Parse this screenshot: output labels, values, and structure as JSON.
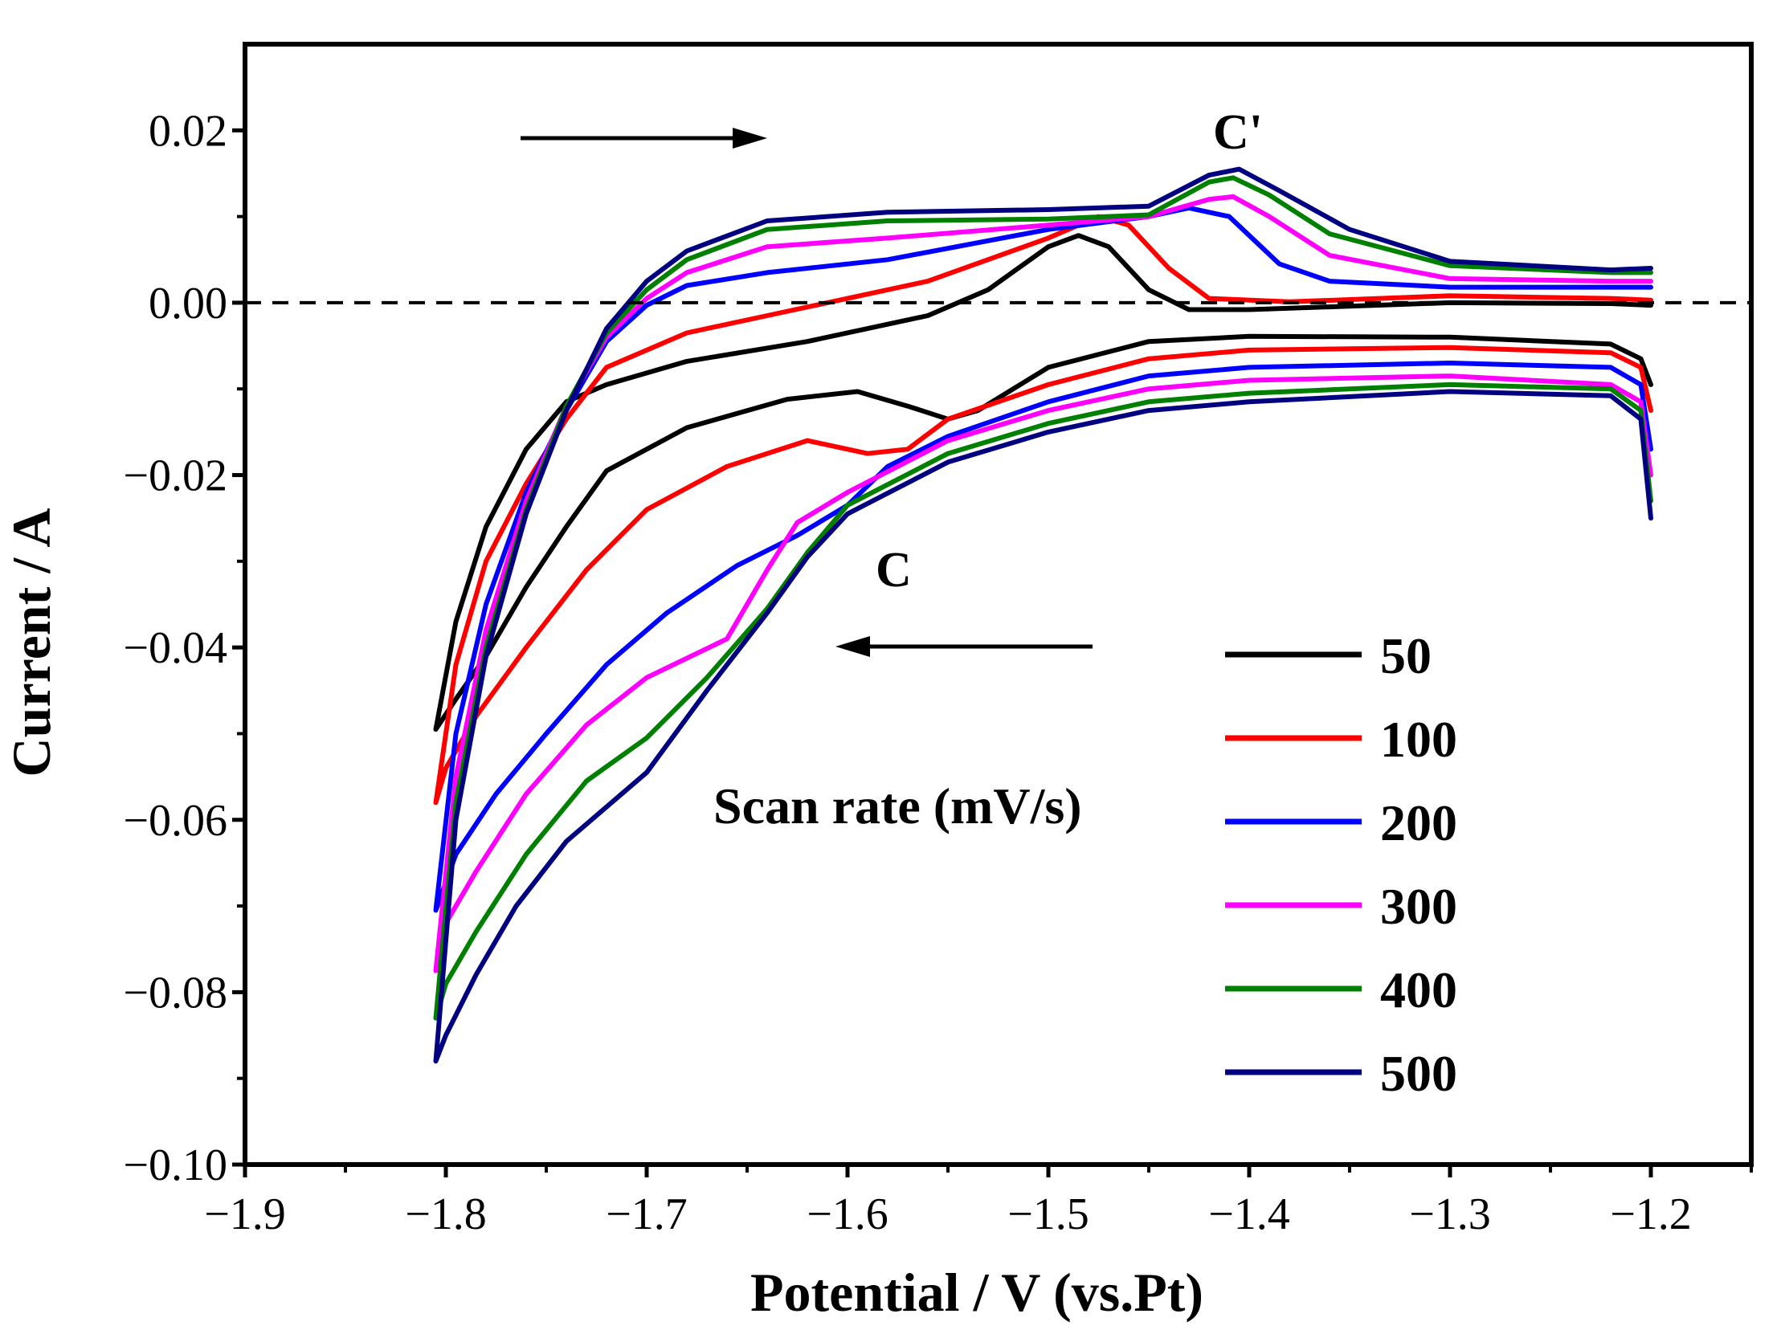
{
  "chart_data": {
    "type": "line",
    "title": "",
    "xlabel": "Potential / V (vs.Pt)",
    "ylabel": "Current / A",
    "xlim": [
      -1.9,
      -1.15
    ],
    "ylim": [
      -0.1,
      0.03
    ],
    "x_ticks": [
      -1.9,
      -1.8,
      -1.7,
      -1.6,
      -1.5,
      -1.4,
      -1.3,
      -1.2
    ],
    "x_tick_labels": [
      "−1.9",
      "−1.8",
      "−1.7",
      "−1.6",
      "−1.5",
      "−1.4",
      "−1.3",
      "−1.2"
    ],
    "y_ticks": [
      0.02,
      0.0,
      -0.02,
      -0.04,
      -0.06,
      -0.08,
      -0.1
    ],
    "y_tick_labels": [
      "0.02",
      "0.00",
      "−0.02",
      "−0.04",
      "−0.06",
      "−0.08",
      "−0.10"
    ],
    "zero_line": 0.0,
    "legend_title": "Scan rate (mV/s)",
    "annotations": {
      "peak_anodic": "C'",
      "peak_cathodic": "C"
    },
    "series": [
      {
        "name": "50",
        "color": "#000000",
        "cathodic": [
          [
            -1.2,
            -0.0095
          ],
          [
            -1.205,
            -0.0065
          ],
          [
            -1.22,
            -0.0048
          ],
          [
            -1.3,
            -0.004
          ],
          [
            -1.4,
            -0.0039
          ],
          [
            -1.45,
            -0.0045
          ],
          [
            -1.5,
            -0.0075
          ],
          [
            -1.535,
            -0.0125
          ],
          [
            -1.55,
            -0.0135
          ],
          [
            -1.57,
            -0.012
          ],
          [
            -1.595,
            -0.0103
          ],
          [
            -1.63,
            -0.0112
          ],
          [
            -1.68,
            -0.0145
          ],
          [
            -1.72,
            -0.0195
          ],
          [
            -1.74,
            -0.026
          ],
          [
            -1.76,
            -0.033
          ],
          [
            -1.78,
            -0.041
          ],
          [
            -1.795,
            -0.046
          ],
          [
            -1.805,
            -0.0495
          ]
        ],
        "anodic": [
          [
            -1.805,
            -0.0495
          ],
          [
            -1.795,
            -0.037
          ],
          [
            -1.78,
            -0.026
          ],
          [
            -1.76,
            -0.017
          ],
          [
            -1.74,
            -0.0115
          ],
          [
            -1.72,
            -0.0095
          ],
          [
            -1.68,
            -0.0068
          ],
          [
            -1.62,
            -0.0045
          ],
          [
            -1.56,
            -0.0015
          ],
          [
            -1.53,
            0.0015
          ],
          [
            -1.5,
            0.0065
          ],
          [
            -1.485,
            0.0078
          ],
          [
            -1.47,
            0.0065
          ],
          [
            -1.45,
            0.0015
          ],
          [
            -1.43,
            -0.0008
          ],
          [
            -1.4,
            -0.0008
          ],
          [
            -1.3,
            0.0
          ],
          [
            -1.22,
            -0.0001
          ],
          [
            -1.2,
            -0.0003
          ]
        ]
      },
      {
        "name": "100",
        "color": "#ff0000",
        "cathodic": [
          [
            -1.2,
            -0.0125
          ],
          [
            -1.205,
            -0.0075
          ],
          [
            -1.22,
            -0.0058
          ],
          [
            -1.3,
            -0.0052
          ],
          [
            -1.4,
            -0.0055
          ],
          [
            -1.45,
            -0.0065
          ],
          [
            -1.5,
            -0.0095
          ],
          [
            -1.55,
            -0.0135
          ],
          [
            -1.57,
            -0.017
          ],
          [
            -1.59,
            -0.0175
          ],
          [
            -1.62,
            -0.016
          ],
          [
            -1.66,
            -0.019
          ],
          [
            -1.7,
            -0.024
          ],
          [
            -1.73,
            -0.031
          ],
          [
            -1.76,
            -0.04
          ],
          [
            -1.785,
            -0.048
          ],
          [
            -1.8,
            -0.054
          ],
          [
            -1.805,
            -0.058
          ]
        ],
        "anodic": [
          [
            -1.805,
            -0.058
          ],
          [
            -1.795,
            -0.042
          ],
          [
            -1.78,
            -0.03
          ],
          [
            -1.76,
            -0.021
          ],
          [
            -1.74,
            -0.0135
          ],
          [
            -1.72,
            -0.0075
          ],
          [
            -1.68,
            -0.0035
          ],
          [
            -1.64,
            -0.0015
          ],
          [
            -1.6,
            0.0005
          ],
          [
            -1.56,
            0.0025
          ],
          [
            -1.5,
            0.0075
          ],
          [
            -1.475,
            0.01
          ],
          [
            -1.46,
            0.009
          ],
          [
            -1.44,
            0.004
          ],
          [
            -1.42,
            0.0005
          ],
          [
            -1.38,
            0.0001
          ],
          [
            -1.3,
            0.0008
          ],
          [
            -1.22,
            0.0005
          ],
          [
            -1.2,
            0.0003
          ]
        ]
      },
      {
        "name": "200",
        "color": "#0000ff",
        "cathodic": [
          [
            -1.2,
            -0.017
          ],
          [
            -1.205,
            -0.0095
          ],
          [
            -1.22,
            -0.0075
          ],
          [
            -1.3,
            -0.007
          ],
          [
            -1.4,
            -0.0075
          ],
          [
            -1.45,
            -0.0085
          ],
          [
            -1.5,
            -0.0115
          ],
          [
            -1.55,
            -0.0155
          ],
          [
            -1.58,
            -0.019
          ],
          [
            -1.6,
            -0.0235
          ],
          [
            -1.625,
            -0.027
          ],
          [
            -1.655,
            -0.0305
          ],
          [
            -1.69,
            -0.036
          ],
          [
            -1.72,
            -0.042
          ],
          [
            -1.75,
            -0.05
          ],
          [
            -1.775,
            -0.057
          ],
          [
            -1.795,
            -0.064
          ],
          [
            -1.805,
            -0.0705
          ]
        ],
        "anodic": [
          [
            -1.805,
            -0.0705
          ],
          [
            -1.795,
            -0.05
          ],
          [
            -1.78,
            -0.035
          ],
          [
            -1.76,
            -0.022
          ],
          [
            -1.74,
            -0.0125
          ],
          [
            -1.72,
            -0.0045
          ],
          [
            -1.7,
            -0.0003
          ],
          [
            -1.68,
            0.002
          ],
          [
            -1.64,
            0.0035
          ],
          [
            -1.58,
            0.005
          ],
          [
            -1.5,
            0.0085
          ],
          [
            -1.45,
            0.01
          ],
          [
            -1.43,
            0.011
          ],
          [
            -1.41,
            0.01
          ],
          [
            -1.385,
            0.0045
          ],
          [
            -1.36,
            0.0025
          ],
          [
            -1.3,
            0.0018
          ],
          [
            -1.22,
            0.0018
          ],
          [
            -1.2,
            0.0018
          ]
        ]
      },
      {
        "name": "300",
        "color": "#ff00ff",
        "cathodic": [
          [
            -1.2,
            -0.02
          ],
          [
            -1.205,
            -0.0115
          ],
          [
            -1.22,
            -0.0095
          ],
          [
            -1.3,
            -0.0085
          ],
          [
            -1.4,
            -0.009
          ],
          [
            -1.45,
            -0.01
          ],
          [
            -1.5,
            -0.0125
          ],
          [
            -1.55,
            -0.016
          ],
          [
            -1.6,
            -0.022
          ],
          [
            -1.625,
            -0.0255
          ],
          [
            -1.64,
            -0.031
          ],
          [
            -1.66,
            -0.039
          ],
          [
            -1.7,
            -0.0435
          ],
          [
            -1.73,
            -0.049
          ],
          [
            -1.76,
            -0.057
          ],
          [
            -1.785,
            -0.066
          ],
          [
            -1.8,
            -0.072
          ],
          [
            -1.805,
            -0.0775
          ]
        ],
        "anodic": [
          [
            -1.805,
            -0.0775
          ],
          [
            -1.795,
            -0.055
          ],
          [
            -1.78,
            -0.038
          ],
          [
            -1.76,
            -0.023
          ],
          [
            -1.74,
            -0.012
          ],
          [
            -1.72,
            -0.004
          ],
          [
            -1.7,
            0.0005
          ],
          [
            -1.68,
            0.0035
          ],
          [
            -1.64,
            0.0065
          ],
          [
            -1.58,
            0.0075
          ],
          [
            -1.5,
            0.009
          ],
          [
            -1.45,
            0.01
          ],
          [
            -1.42,
            0.012
          ],
          [
            -1.408,
            0.0123
          ],
          [
            -1.39,
            0.01
          ],
          [
            -1.36,
            0.0055
          ],
          [
            -1.3,
            0.0028
          ],
          [
            -1.22,
            0.0025
          ],
          [
            -1.2,
            0.0025
          ]
        ]
      },
      {
        "name": "400",
        "color": "#008000",
        "cathodic": [
          [
            -1.2,
            -0.023
          ],
          [
            -1.205,
            -0.0125
          ],
          [
            -1.22,
            -0.01
          ],
          [
            -1.3,
            -0.0095
          ],
          [
            -1.4,
            -0.0105
          ],
          [
            -1.45,
            -0.0115
          ],
          [
            -1.5,
            -0.014
          ],
          [
            -1.55,
            -0.0175
          ],
          [
            -1.6,
            -0.0235
          ],
          [
            -1.62,
            -0.029
          ],
          [
            -1.64,
            -0.0355
          ],
          [
            -1.67,
            -0.0435
          ],
          [
            -1.7,
            -0.0505
          ],
          [
            -1.73,
            -0.0555
          ],
          [
            -1.76,
            -0.064
          ],
          [
            -1.785,
            -0.073
          ],
          [
            -1.8,
            -0.079
          ],
          [
            -1.805,
            -0.083
          ]
        ],
        "anodic": [
          [
            -1.805,
            -0.083
          ],
          [
            -1.795,
            -0.058
          ],
          [
            -1.78,
            -0.04
          ],
          [
            -1.76,
            -0.024
          ],
          [
            -1.74,
            -0.012
          ],
          [
            -1.72,
            -0.0035
          ],
          [
            -1.7,
            0.0015
          ],
          [
            -1.68,
            0.005
          ],
          [
            -1.64,
            0.0085
          ],
          [
            -1.58,
            0.0095
          ],
          [
            -1.5,
            0.0097
          ],
          [
            -1.45,
            0.0102
          ],
          [
            -1.42,
            0.014
          ],
          [
            -1.408,
            0.0145
          ],
          [
            -1.39,
            0.0125
          ],
          [
            -1.36,
            0.008
          ],
          [
            -1.3,
            0.0043
          ],
          [
            -1.22,
            0.0035
          ],
          [
            -1.2,
            0.0035
          ]
        ]
      },
      {
        "name": "500",
        "color": "#000080",
        "cathodic": [
          [
            -1.2,
            -0.025
          ],
          [
            -1.205,
            -0.0135
          ],
          [
            -1.22,
            -0.0108
          ],
          [
            -1.3,
            -0.0103
          ],
          [
            -1.4,
            -0.0115
          ],
          [
            -1.45,
            -0.0125
          ],
          [
            -1.5,
            -0.015
          ],
          [
            -1.55,
            -0.0185
          ],
          [
            -1.6,
            -0.0245
          ],
          [
            -1.62,
            -0.0295
          ],
          [
            -1.64,
            -0.036
          ],
          [
            -1.67,
            -0.045
          ],
          [
            -1.7,
            -0.0545
          ],
          [
            -1.74,
            -0.0625
          ],
          [
            -1.765,
            -0.07
          ],
          [
            -1.785,
            -0.078
          ],
          [
            -1.8,
            -0.085
          ],
          [
            -1.805,
            -0.088
          ]
        ],
        "anodic": [
          [
            -1.805,
            -0.088
          ],
          [
            -1.795,
            -0.06
          ],
          [
            -1.78,
            -0.041
          ],
          [
            -1.76,
            -0.0245
          ],
          [
            -1.74,
            -0.0125
          ],
          [
            -1.72,
            -0.003
          ],
          [
            -1.7,
            0.0025
          ],
          [
            -1.68,
            0.006
          ],
          [
            -1.64,
            0.0095
          ],
          [
            -1.58,
            0.0105
          ],
          [
            -1.5,
            0.0108
          ],
          [
            -1.45,
            0.0112
          ],
          [
            -1.42,
            0.0148
          ],
          [
            -1.405,
            0.0155
          ],
          [
            -1.385,
            0.013
          ],
          [
            -1.35,
            0.0085
          ],
          [
            -1.3,
            0.0048
          ],
          [
            -1.22,
            0.0038
          ],
          [
            -1.2,
            0.004
          ]
        ]
      }
    ]
  }
}
